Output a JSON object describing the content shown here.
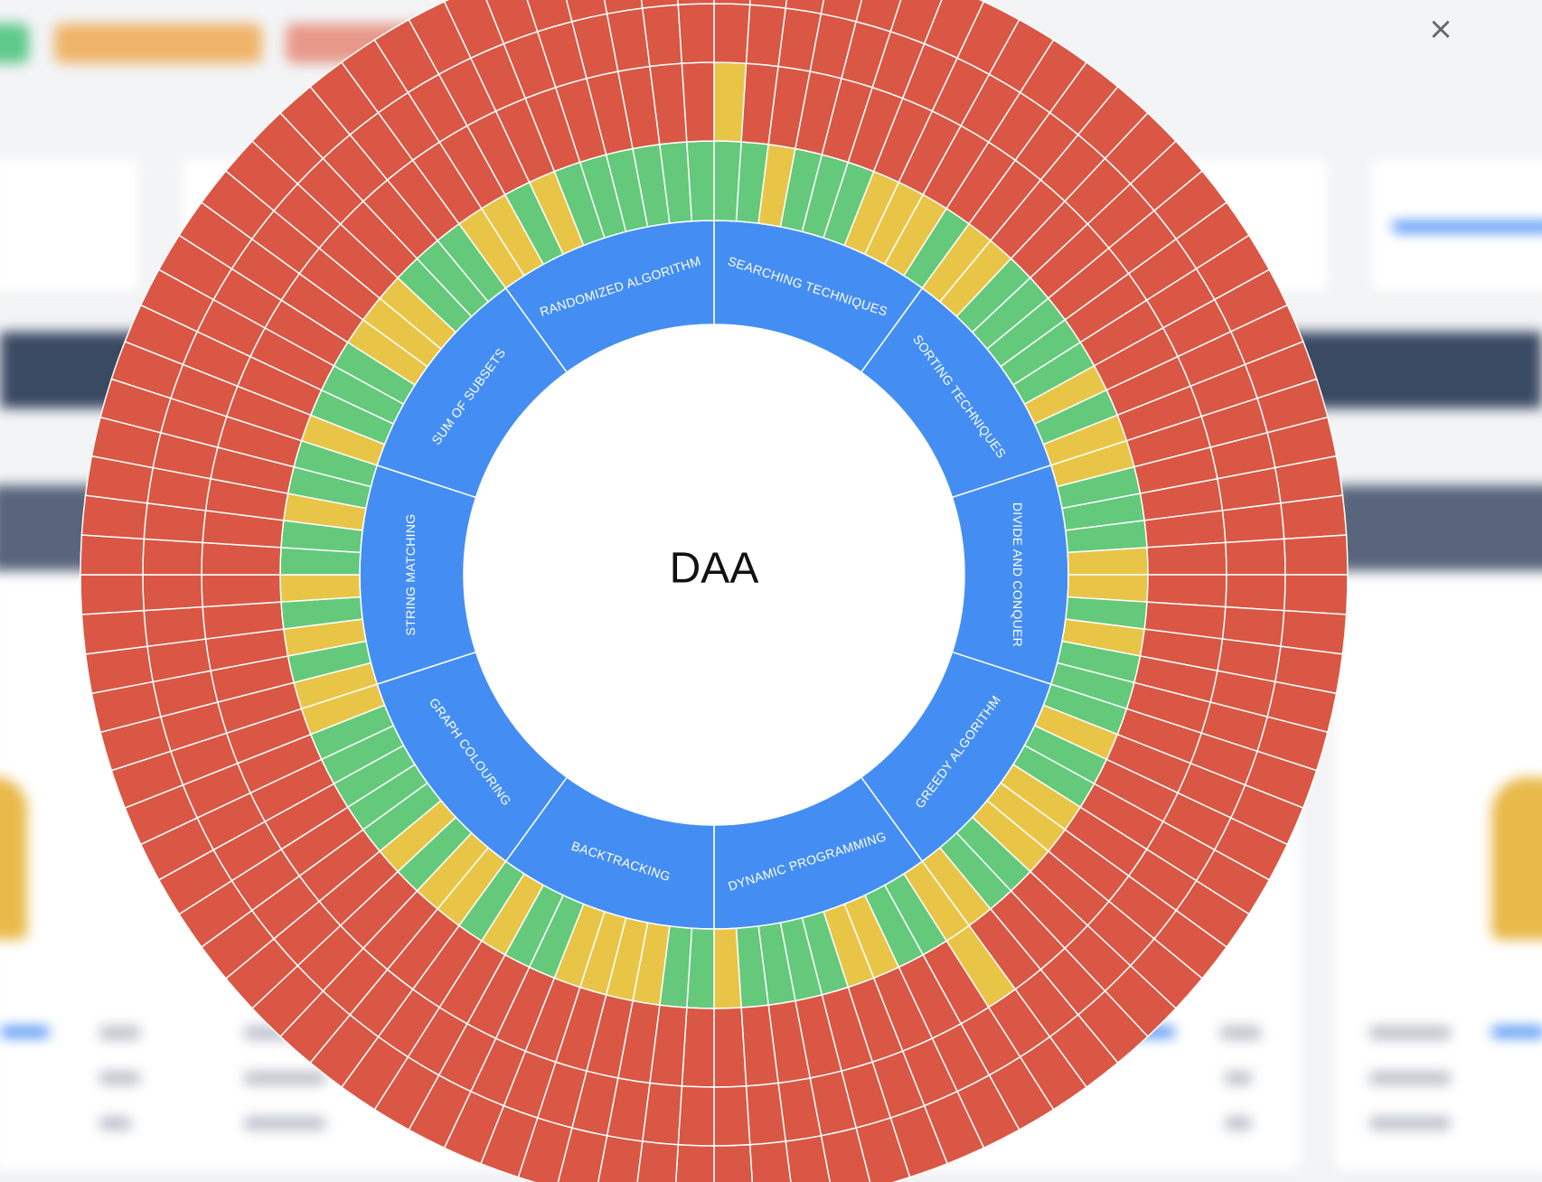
{
  "modal": {
    "close_label": "×"
  },
  "colors": {
    "category": "#448ef3",
    "green": "#64c97b",
    "yellow": "#e9c547",
    "red": "#d95744",
    "separator": "#ffffff",
    "center": "#ffffff"
  },
  "chart_data": {
    "type": "sunburst",
    "title": "DAA",
    "start_angle_deg": 0,
    "direction": "clockwise",
    "status_scale": [
      "green",
      "yellow",
      "red"
    ],
    "categories": [
      {
        "name": "SEARCHING TECHNIQUES",
        "items": [
          {
            "r1": "green",
            "r2": "yellow"
          },
          {
            "r1": "green",
            "r2": "red"
          },
          {
            "r1": "yellow",
            "r2": "red"
          },
          {
            "r1": "green",
            "r2": "red"
          },
          {
            "r1": "green",
            "r2": "red"
          },
          {
            "r1": "green",
            "r2": "red"
          },
          {
            "r1": "yellow",
            "r2": "red"
          },
          {
            "r1": "yellow",
            "r2": "red"
          },
          {
            "r1": "yellow",
            "r2": "red"
          },
          {
            "r1": "green",
            "r2": "red"
          }
        ]
      },
      {
        "name": "SORTING TECHNIQUES",
        "items": [
          {
            "r1": "yellow",
            "r2": "red"
          },
          {
            "r1": "yellow",
            "r2": "red"
          },
          {
            "r1": "green",
            "r2": "red"
          },
          {
            "r1": "green",
            "r2": "red"
          },
          {
            "r1": "green",
            "r2": "red"
          },
          {
            "r1": "green",
            "r2": "red"
          },
          {
            "r1": "green",
            "r2": "red"
          },
          {
            "r1": "yellow",
            "r2": "red"
          },
          {
            "r1": "green",
            "r2": "red"
          },
          {
            "r1": "yellow",
            "r2": "red"
          }
        ]
      },
      {
        "name": "DIVIDE AND CONQUER",
        "items": [
          {
            "r1": "yellow",
            "r2": "red"
          },
          {
            "r1": "green",
            "r2": "red"
          },
          {
            "r1": "green",
            "r2": "red"
          },
          {
            "r1": "green",
            "r2": "red"
          },
          {
            "r1": "yellow",
            "r2": "red"
          },
          {
            "r1": "yellow",
            "r2": "red"
          },
          {
            "r1": "green",
            "r2": "red"
          },
          {
            "r1": "yellow",
            "r2": "red"
          },
          {
            "r1": "green",
            "r2": "red"
          },
          {
            "r1": "green",
            "r2": "red"
          }
        ]
      },
      {
        "name": "GREEDY ALGORITHM",
        "items": [
          {
            "r1": "green",
            "r2": "red"
          },
          {
            "r1": "yellow",
            "r2": "red"
          },
          {
            "r1": "green",
            "r2": "red"
          },
          {
            "r1": "green",
            "r2": "red"
          },
          {
            "r1": "yellow",
            "r2": "red"
          },
          {
            "r1": "yellow",
            "r2": "red"
          },
          {
            "r1": "yellow",
            "r2": "red"
          },
          {
            "r1": "green",
            "r2": "red"
          },
          {
            "r1": "green",
            "r2": "red"
          },
          {
            "r1": "yellow",
            "r2": "red"
          }
        ]
      },
      {
        "name": "DYNAMIC PROGRAMMING",
        "items": [
          {
            "r1": "yellow",
            "r2": "yellow"
          },
          {
            "r1": "green",
            "r2": "red"
          },
          {
            "r1": "green",
            "r2": "red"
          },
          {
            "r1": "yellow",
            "r2": "red"
          },
          {
            "r1": "yellow",
            "r2": "red"
          },
          {
            "r1": "green",
            "r2": "red"
          },
          {
            "r1": "green",
            "r2": "red"
          },
          {
            "r1": "green",
            "r2": "red"
          },
          {
            "r1": "green",
            "r2": "red"
          },
          {
            "r1": "yellow",
            "r2": "red"
          }
        ]
      },
      {
        "name": "BACKTRACKING",
        "items": [
          {
            "r1": "green",
            "r2": "red"
          },
          {
            "r1": "green",
            "r2": "red"
          },
          {
            "r1": "yellow",
            "r2": "red"
          },
          {
            "r1": "yellow",
            "r2": "red"
          },
          {
            "r1": "yellow",
            "r2": "red"
          },
          {
            "r1": "yellow",
            "r2": "red"
          },
          {
            "r1": "green",
            "r2": "red"
          },
          {
            "r1": "green",
            "r2": "red"
          },
          {
            "r1": "yellow",
            "r2": "red"
          },
          {
            "r1": "green",
            "r2": "red"
          }
        ]
      },
      {
        "name": "GRAPH COLOURING",
        "items": [
          {
            "r1": "yellow",
            "r2": "red"
          },
          {
            "r1": "yellow",
            "r2": "red"
          },
          {
            "r1": "green",
            "r2": "red"
          },
          {
            "r1": "yellow",
            "r2": "red"
          },
          {
            "r1": "green",
            "r2": "red"
          },
          {
            "r1": "green",
            "r2": "red"
          },
          {
            "r1": "green",
            "r2": "red"
          },
          {
            "r1": "green",
            "r2": "red"
          },
          {
            "r1": "green",
            "r2": "red"
          },
          {
            "r1": "yellow",
            "r2": "red"
          }
        ]
      },
      {
        "name": "STRING MATCHING",
        "items": [
          {
            "r1": "yellow",
            "r2": "red"
          },
          {
            "r1": "green",
            "r2": "red"
          },
          {
            "r1": "yellow",
            "r2": "red"
          },
          {
            "r1": "green",
            "r2": "red"
          },
          {
            "r1": "yellow",
            "r2": "red"
          },
          {
            "r1": "green",
            "r2": "red"
          },
          {
            "r1": "green",
            "r2": "red"
          },
          {
            "r1": "yellow",
            "r2": "red"
          },
          {
            "r1": "green",
            "r2": "red"
          },
          {
            "r1": "green",
            "r2": "red"
          }
        ]
      },
      {
        "name": "SUM OF SUBSETS",
        "items": [
          {
            "r1": "yellow",
            "r2": "red"
          },
          {
            "r1": "green",
            "r2": "red"
          },
          {
            "r1": "green",
            "r2": "red"
          },
          {
            "r1": "green",
            "r2": "red"
          },
          {
            "r1": "yellow",
            "r2": "red"
          },
          {
            "r1": "yellow",
            "r2": "red"
          },
          {
            "r1": "yellow",
            "r2": "red"
          },
          {
            "r1": "green",
            "r2": "red"
          },
          {
            "r1": "green",
            "r2": "red"
          },
          {
            "r1": "green",
            "r2": "red"
          }
        ]
      },
      {
        "name": "RANDOMIZED ALGORITHM",
        "items": [
          {
            "r1": "yellow",
            "r2": "red"
          },
          {
            "r1": "yellow",
            "r2": "red"
          },
          {
            "r1": "green",
            "r2": "red"
          },
          {
            "r1": "yellow",
            "r2": "red"
          },
          {
            "r1": "green",
            "r2": "red"
          },
          {
            "r1": "green",
            "r2": "red"
          },
          {
            "r1": "green",
            "r2": "red"
          },
          {
            "r1": "green",
            "r2": "red"
          },
          {
            "r1": "green",
            "r2": "red"
          },
          {
            "r1": "green",
            "r2": "red"
          }
        ]
      }
    ]
  }
}
